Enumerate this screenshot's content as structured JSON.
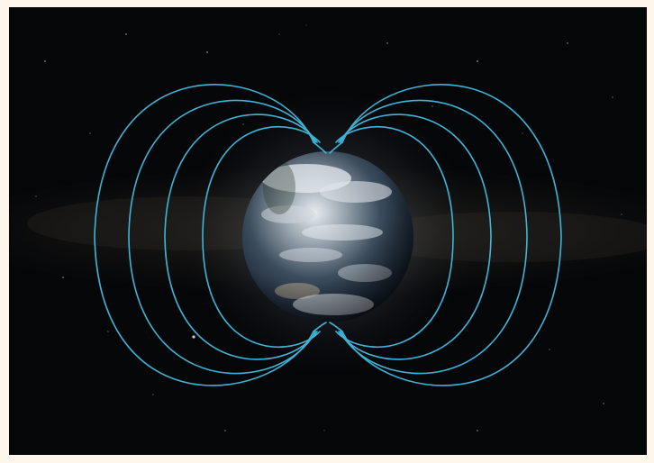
{
  "scene": {
    "subject": "earth-globe",
    "feature": "magnetic-field-lines",
    "background": "starfield-with-milky-way",
    "colors": {
      "frame": "#fdf6ea",
      "space": "#050608",
      "field_lines": "#3fb4d8",
      "ocean": "#1b2a3a",
      "clouds": "#e6ebef"
    }
  }
}
